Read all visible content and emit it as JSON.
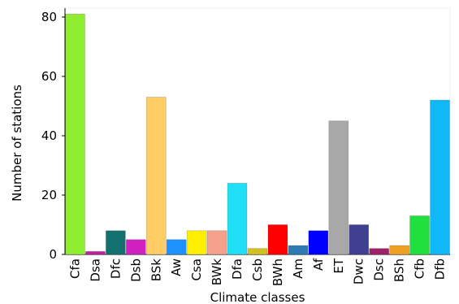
{
  "chart_data": {
    "type": "bar",
    "title": "",
    "xlabel": "Climate classes",
    "ylabel": "Number of stations",
    "ylim": [
      0,
      83
    ],
    "yticks": [
      0,
      20,
      40,
      60,
      80
    ],
    "grid": false,
    "categories": [
      "Cfa",
      "Dsa",
      "Dfc",
      "Dsb",
      "BSk",
      "Aw",
      "Csa",
      "BWk",
      "Dfa",
      "Csb",
      "BWh",
      "Am",
      "Af",
      "ET",
      "Dwc",
      "Dsc",
      "BSh",
      "Cfb",
      "Dfb"
    ],
    "values": [
      81,
      1,
      8,
      5,
      53,
      5,
      8,
      8,
      24,
      2,
      10,
      3,
      8,
      45,
      10,
      2,
      3,
      13,
      52
    ],
    "colors": [
      "#90ee30",
      "#c020a0",
      "#12706e",
      "#d020c0",
      "#ffcc66",
      "#1e90ff",
      "#ffee00",
      "#f4a08a",
      "#20e0f8",
      "#d4c020",
      "#ff0000",
      "#2e7ab4",
      "#0000ff",
      "#a8a8a8",
      "#404090",
      "#a0206a",
      "#f0a020",
      "#20e040",
      "#10b8f8"
    ]
  }
}
